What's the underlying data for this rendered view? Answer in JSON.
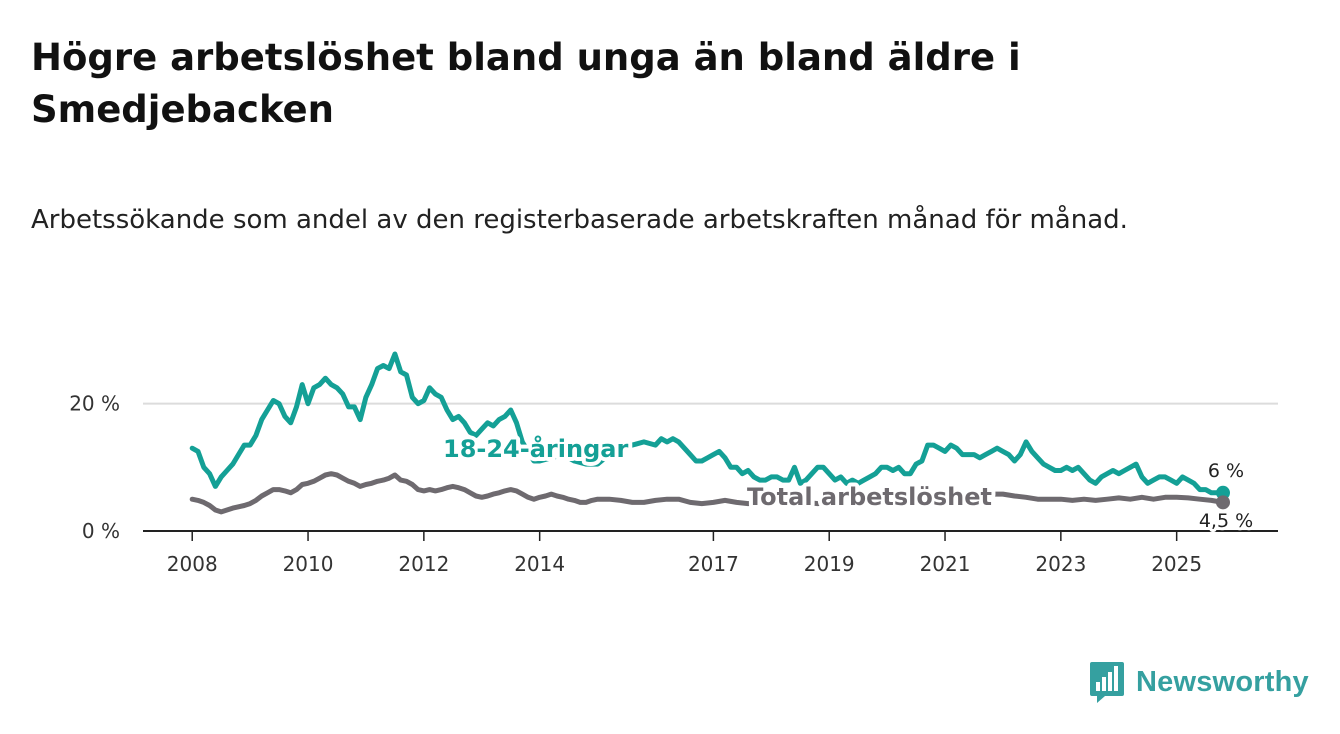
{
  "chart_data": {
    "type": "line",
    "title": "Högre arbetslöshet bland unga än bland äldre i Smedjebacken",
    "subtitle": "Arbetssökande som andel av den registerbaserade arbetskraften månad för månad.",
    "xlabel": "",
    "ylabel": "",
    "x_ticks": [
      2008,
      2010,
      2012,
      2014,
      2017,
      2019,
      2021,
      2023,
      2025
    ],
    "x_tick_labels": [
      "2008",
      "2010",
      "2012",
      "2014",
      "2017",
      "2019",
      "2021",
      "2023",
      "2025"
    ],
    "y_ticks": [
      0,
      20
    ],
    "y_tick_labels": [
      "0 %",
      "20 %"
    ],
    "xlim": [
      2007.15,
      2026.75
    ],
    "ylim": [
      0,
      30
    ],
    "grid": "horizontal",
    "series": [
      {
        "name": "18-24-åringar",
        "label": "18-24-åringar",
        "color": "#14a096",
        "end_label": "6 %",
        "points": [
          [
            2008.0,
            13.0
          ],
          [
            2008.1,
            12.5
          ],
          [
            2008.2,
            10.0
          ],
          [
            2008.3,
            9.0
          ],
          [
            2008.4,
            7.0
          ],
          [
            2008.5,
            8.5
          ],
          [
            2008.6,
            9.5
          ],
          [
            2008.7,
            10.5
          ],
          [
            2008.8,
            12.0
          ],
          [
            2008.9,
            13.5
          ],
          [
            2009.0,
            13.5
          ],
          [
            2009.1,
            15.0
          ],
          [
            2009.2,
            17.5
          ],
          [
            2009.3,
            19.0
          ],
          [
            2009.4,
            20.5
          ],
          [
            2009.5,
            20.0
          ],
          [
            2009.6,
            18.0
          ],
          [
            2009.7,
            17.0
          ],
          [
            2009.8,
            19.5
          ],
          [
            2009.9,
            23.0
          ],
          [
            2010.0,
            20.0
          ],
          [
            2010.1,
            22.5
          ],
          [
            2010.2,
            23.0
          ],
          [
            2010.3,
            24.0
          ],
          [
            2010.4,
            23.0
          ],
          [
            2010.5,
            22.5
          ],
          [
            2010.6,
            21.5
          ],
          [
            2010.7,
            19.5
          ],
          [
            2010.8,
            19.5
          ],
          [
            2010.9,
            17.5
          ],
          [
            2011.0,
            21.0
          ],
          [
            2011.1,
            23.0
          ],
          [
            2011.2,
            25.5
          ],
          [
            2011.3,
            26.0
          ],
          [
            2011.4,
            25.5
          ],
          [
            2011.5,
            27.8
          ],
          [
            2011.6,
            25.0
          ],
          [
            2011.7,
            24.5
          ],
          [
            2011.8,
            21.0
          ],
          [
            2011.9,
            20.0
          ],
          [
            2012.0,
            20.5
          ],
          [
            2012.1,
            22.5
          ],
          [
            2012.2,
            21.5
          ],
          [
            2012.3,
            21.0
          ],
          [
            2012.4,
            19.0
          ],
          [
            2012.5,
            17.5
          ],
          [
            2012.6,
            18.0
          ],
          [
            2012.7,
            17.0
          ],
          [
            2012.8,
            15.5
          ],
          [
            2012.9,
            15.0
          ],
          [
            2013.0,
            16.0
          ],
          [
            2013.1,
            17.0
          ],
          [
            2013.2,
            16.5
          ],
          [
            2013.3,
            17.5
          ],
          [
            2013.4,
            18.0
          ],
          [
            2013.5,
            19.0
          ],
          [
            2013.6,
            17.0
          ],
          [
            2013.7,
            14.0
          ],
          [
            2013.8,
            12.5
          ],
          [
            2013.9,
            11.0
          ],
          [
            2014.0,
            11.0
          ],
          [
            2014.2,
            11.5
          ],
          [
            2014.4,
            12.0
          ],
          [
            2014.6,
            11.0
          ],
          [
            2014.8,
            10.5
          ],
          [
            2015.0,
            10.5
          ],
          [
            2015.2,
            12.0
          ],
          [
            2015.4,
            13.0
          ],
          [
            2015.6,
            13.5
          ],
          [
            2015.8,
            14.0
          ],
          [
            2016.0,
            13.5
          ],
          [
            2016.1,
            14.5
          ],
          [
            2016.2,
            14.0
          ],
          [
            2016.3,
            14.5
          ],
          [
            2016.4,
            14.0
          ],
          [
            2016.5,
            13.0
          ],
          [
            2016.6,
            12.0
          ],
          [
            2016.7,
            11.0
          ],
          [
            2016.8,
            11.0
          ],
          [
            2016.9,
            11.5
          ],
          [
            2017.0,
            12.0
          ],
          [
            2017.1,
            12.5
          ],
          [
            2017.2,
            11.5
          ],
          [
            2017.3,
            10.0
          ],
          [
            2017.4,
            10.0
          ],
          [
            2017.5,
            9.0
          ],
          [
            2017.6,
            9.5
          ],
          [
            2017.7,
            8.5
          ],
          [
            2017.8,
            8.0
          ],
          [
            2017.9,
            8.0
          ],
          [
            2018.0,
            8.5
          ],
          [
            2018.1,
            8.5
          ],
          [
            2018.2,
            8.0
          ],
          [
            2018.3,
            8.0
          ],
          [
            2018.4,
            10.0
          ],
          [
            2018.5,
            7.5
          ],
          [
            2018.6,
            8.0
          ],
          [
            2018.7,
            9.0
          ],
          [
            2018.8,
            10.0
          ],
          [
            2018.9,
            10.0
          ],
          [
            2019.0,
            9.0
          ],
          [
            2019.1,
            8.0
          ],
          [
            2019.2,
            8.5
          ],
          [
            2019.3,
            7.5
          ],
          [
            2019.4,
            8.0
          ],
          [
            2019.5,
            7.5
          ],
          [
            2019.6,
            8.0
          ],
          [
            2019.7,
            8.5
          ],
          [
            2019.8,
            9.0
          ],
          [
            2019.9,
            10.0
          ],
          [
            2020.0,
            10.0
          ],
          [
            2020.1,
            9.5
          ],
          [
            2020.2,
            10.0
          ],
          [
            2020.3,
            9.0
          ],
          [
            2020.4,
            9.0
          ],
          [
            2020.5,
            10.5
          ],
          [
            2020.6,
            11.0
          ],
          [
            2020.7,
            13.5
          ],
          [
            2020.8,
            13.5
          ],
          [
            2020.9,
            13.0
          ],
          [
            2021.0,
            12.5
          ],
          [
            2021.1,
            13.5
          ],
          [
            2021.2,
            13.0
          ],
          [
            2021.3,
            12.0
          ],
          [
            2021.4,
            12.0
          ],
          [
            2021.5,
            12.0
          ],
          [
            2021.6,
            11.5
          ],
          [
            2021.7,
            12.0
          ],
          [
            2021.8,
            12.5
          ],
          [
            2021.9,
            13.0
          ],
          [
            2022.0,
            12.5
          ],
          [
            2022.1,
            12.0
          ],
          [
            2022.2,
            11.0
          ],
          [
            2022.3,
            12.0
          ],
          [
            2022.4,
            14.0
          ],
          [
            2022.5,
            12.5
          ],
          [
            2022.6,
            11.5
          ],
          [
            2022.7,
            10.5
          ],
          [
            2022.8,
            10.0
          ],
          [
            2022.9,
            9.5
          ],
          [
            2023.0,
            9.5
          ],
          [
            2023.1,
            10.0
          ],
          [
            2023.2,
            9.5
          ],
          [
            2023.3,
            10.0
          ],
          [
            2023.4,
            9.0
          ],
          [
            2023.5,
            8.0
          ],
          [
            2023.6,
            7.5
          ],
          [
            2023.7,
            8.5
          ],
          [
            2023.8,
            9.0
          ],
          [
            2023.9,
            9.5
          ],
          [
            2024.0,
            9.0
          ],
          [
            2024.1,
            9.5
          ],
          [
            2024.2,
            10.0
          ],
          [
            2024.3,
            10.5
          ],
          [
            2024.4,
            8.5
          ],
          [
            2024.5,
            7.5
          ],
          [
            2024.6,
            8.0
          ],
          [
            2024.7,
            8.5
          ],
          [
            2024.8,
            8.5
          ],
          [
            2024.9,
            8.0
          ],
          [
            2025.0,
            7.5
          ],
          [
            2025.1,
            8.5
          ],
          [
            2025.2,
            8.0
          ],
          [
            2025.3,
            7.5
          ],
          [
            2025.4,
            6.5
          ],
          [
            2025.5,
            6.5
          ],
          [
            2025.6,
            6.0
          ],
          [
            2025.7,
            6.0
          ],
          [
            2025.8,
            6.0
          ]
        ]
      },
      {
        "name": "Total arbetslöshet",
        "label": "Total arbetslöshet",
        "color": "#6e6a6f",
        "end_label": "4,5 %",
        "points": [
          [
            2008.0,
            5.0
          ],
          [
            2008.1,
            4.8
          ],
          [
            2008.2,
            4.5
          ],
          [
            2008.3,
            4.0
          ],
          [
            2008.4,
            3.3
          ],
          [
            2008.5,
            3.0
          ],
          [
            2008.6,
            3.3
          ],
          [
            2008.7,
            3.6
          ],
          [
            2008.8,
            3.8
          ],
          [
            2008.9,
            4.0
          ],
          [
            2009.0,
            4.3
          ],
          [
            2009.1,
            4.8
          ],
          [
            2009.2,
            5.5
          ],
          [
            2009.3,
            6.0
          ],
          [
            2009.4,
            6.5
          ],
          [
            2009.5,
            6.5
          ],
          [
            2009.6,
            6.3
          ],
          [
            2009.7,
            6.0
          ],
          [
            2009.8,
            6.5
          ],
          [
            2009.9,
            7.3
          ],
          [
            2010.0,
            7.5
          ],
          [
            2010.1,
            7.8
          ],
          [
            2010.2,
            8.3
          ],
          [
            2010.3,
            8.8
          ],
          [
            2010.4,
            9.0
          ],
          [
            2010.5,
            8.8
          ],
          [
            2010.6,
            8.3
          ],
          [
            2010.7,
            7.8
          ],
          [
            2010.8,
            7.5
          ],
          [
            2010.9,
            7.0
          ],
          [
            2011.0,
            7.3
          ],
          [
            2011.1,
            7.5
          ],
          [
            2011.2,
            7.8
          ],
          [
            2011.3,
            8.0
          ],
          [
            2011.4,
            8.3
          ],
          [
            2011.5,
            8.8
          ],
          [
            2011.6,
            8.0
          ],
          [
            2011.7,
            7.8
          ],
          [
            2011.8,
            7.3
          ],
          [
            2011.9,
            6.5
          ],
          [
            2012.0,
            6.3
          ],
          [
            2012.1,
            6.5
          ],
          [
            2012.2,
            6.3
          ],
          [
            2012.3,
            6.5
          ],
          [
            2012.4,
            6.8
          ],
          [
            2012.5,
            7.0
          ],
          [
            2012.6,
            6.8
          ],
          [
            2012.7,
            6.5
          ],
          [
            2012.8,
            6.0
          ],
          [
            2012.9,
            5.5
          ],
          [
            2013.0,
            5.3
          ],
          [
            2013.1,
            5.5
          ],
          [
            2013.2,
            5.8
          ],
          [
            2013.3,
            6.0
          ],
          [
            2013.4,
            6.3
          ],
          [
            2013.5,
            6.5
          ],
          [
            2013.6,
            6.3
          ],
          [
            2013.7,
            5.8
          ],
          [
            2013.8,
            5.3
          ],
          [
            2013.9,
            5.0
          ],
          [
            2014.0,
            5.3
          ],
          [
            2014.1,
            5.5
          ],
          [
            2014.2,
            5.8
          ],
          [
            2014.3,
            5.5
          ],
          [
            2014.4,
            5.3
          ],
          [
            2014.5,
            5.0
          ],
          [
            2014.6,
            4.8
          ],
          [
            2014.7,
            4.5
          ],
          [
            2014.8,
            4.5
          ],
          [
            2014.9,
            4.8
          ],
          [
            2015.0,
            5.0
          ],
          [
            2015.2,
            5.0
          ],
          [
            2015.4,
            4.8
          ],
          [
            2015.6,
            4.5
          ],
          [
            2015.8,
            4.5
          ],
          [
            2016.0,
            4.8
          ],
          [
            2016.2,
            5.0
          ],
          [
            2016.4,
            5.0
          ],
          [
            2016.6,
            4.5
          ],
          [
            2016.8,
            4.3
          ],
          [
            2017.0,
            4.5
          ],
          [
            2017.2,
            4.8
          ],
          [
            2017.4,
            4.5
          ],
          [
            2017.6,
            4.3
          ],
          [
            2017.8,
            4.5
          ],
          [
            2018.0,
            4.3
          ],
          [
            2018.2,
            4.5
          ],
          [
            2018.4,
            4.8
          ],
          [
            2018.6,
            4.5
          ],
          [
            2018.8,
            4.3
          ],
          [
            2019.0,
            4.5
          ],
          [
            2019.2,
            4.8
          ],
          [
            2019.4,
            4.5
          ],
          [
            2019.6,
            4.5
          ],
          [
            2019.8,
            4.8
          ],
          [
            2020.0,
            5.0
          ],
          [
            2020.2,
            5.3
          ],
          [
            2020.4,
            5.5
          ],
          [
            2020.6,
            5.8
          ],
          [
            2020.8,
            6.0
          ],
          [
            2021.0,
            6.0
          ],
          [
            2021.2,
            5.8
          ],
          [
            2021.4,
            5.8
          ],
          [
            2021.6,
            5.5
          ],
          [
            2021.8,
            5.8
          ],
          [
            2022.0,
            5.8
          ],
          [
            2022.2,
            5.5
          ],
          [
            2022.4,
            5.3
          ],
          [
            2022.6,
            5.0
          ],
          [
            2022.8,
            5.0
          ],
          [
            2023.0,
            5.0
          ],
          [
            2023.2,
            4.8
          ],
          [
            2023.4,
            5.0
          ],
          [
            2023.6,
            4.8
          ],
          [
            2023.8,
            5.0
          ],
          [
            2024.0,
            5.2
          ],
          [
            2024.2,
            5.0
          ],
          [
            2024.4,
            5.3
          ],
          [
            2024.6,
            5.0
          ],
          [
            2024.8,
            5.3
          ],
          [
            2025.0,
            5.3
          ],
          [
            2025.2,
            5.2
          ],
          [
            2025.4,
            5.0
          ],
          [
            2025.6,
            4.8
          ],
          [
            2025.8,
            4.5
          ]
        ]
      }
    ]
  },
  "brand": {
    "name": "Newsworthy",
    "icon": "bar-chart-speech-bubble-icon",
    "color": "#35a0a0"
  }
}
